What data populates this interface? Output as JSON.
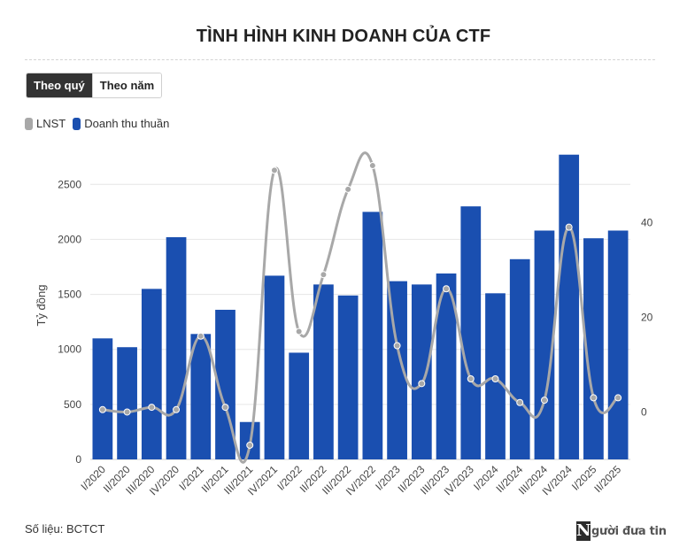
{
  "title": "TÌNH HÌNH KINH DOANH CỦA CTF",
  "tabs": [
    {
      "label": "Theo quý",
      "active": true
    },
    {
      "label": "Theo năm",
      "active": false
    }
  ],
  "legend": [
    {
      "label": "LNST",
      "color": "#a8a8a8"
    },
    {
      "label": "Doanh thu thuần",
      "color": "#1a4fb0"
    }
  ],
  "source": "Số liệu: BCTCT",
  "logo": {
    "mark": "N",
    "text": "gười đưa tin"
  },
  "colors": {
    "bar": "#1a4fb0",
    "line": "#a8a8a8",
    "grid": "#e6e6e6"
  },
  "chart_data": {
    "type": "bar",
    "categories": [
      "I/2020",
      "II/2020",
      "III/2020",
      "IV/2020",
      "I/2021",
      "II/2021",
      "III/2021",
      "IV/2021",
      "I/2022",
      "II/2022",
      "III/2022",
      "IV/2022",
      "I/2023",
      "II/2023",
      "III/2023",
      "IV/2023",
      "I/2024",
      "II/2024",
      "III/2024",
      "IV/2024",
      "I/2025",
      "II/2025"
    ],
    "ylabel": "Tỷ đồng",
    "ylim": [
      0,
      2800
    ],
    "yticks": [
      0,
      500,
      1000,
      1500,
      2000,
      2500
    ],
    "y2lim": [
      -10,
      55
    ],
    "y2ticks": [
      0,
      20,
      40
    ],
    "grid": true,
    "legend_position": "top-left",
    "series": [
      {
        "name": "Doanh thu thuần",
        "type": "bar",
        "axis": "left",
        "values": [
          1100,
          1020,
          1550,
          2020,
          1140,
          1360,
          340,
          1670,
          970,
          1590,
          1490,
          2250,
          1620,
          1590,
          1690,
          2300,
          1510,
          1820,
          2080,
          2770,
          2010,
          2080
        ]
      },
      {
        "name": "LNST",
        "type": "line",
        "axis": "right",
        "values": [
          0.5,
          0,
          1,
          0.5,
          16,
          1,
          -7,
          51,
          17,
          29,
          47,
          52,
          14,
          6,
          26,
          7,
          7,
          2,
          2.5,
          39,
          3,
          3
        ]
      }
    ]
  }
}
